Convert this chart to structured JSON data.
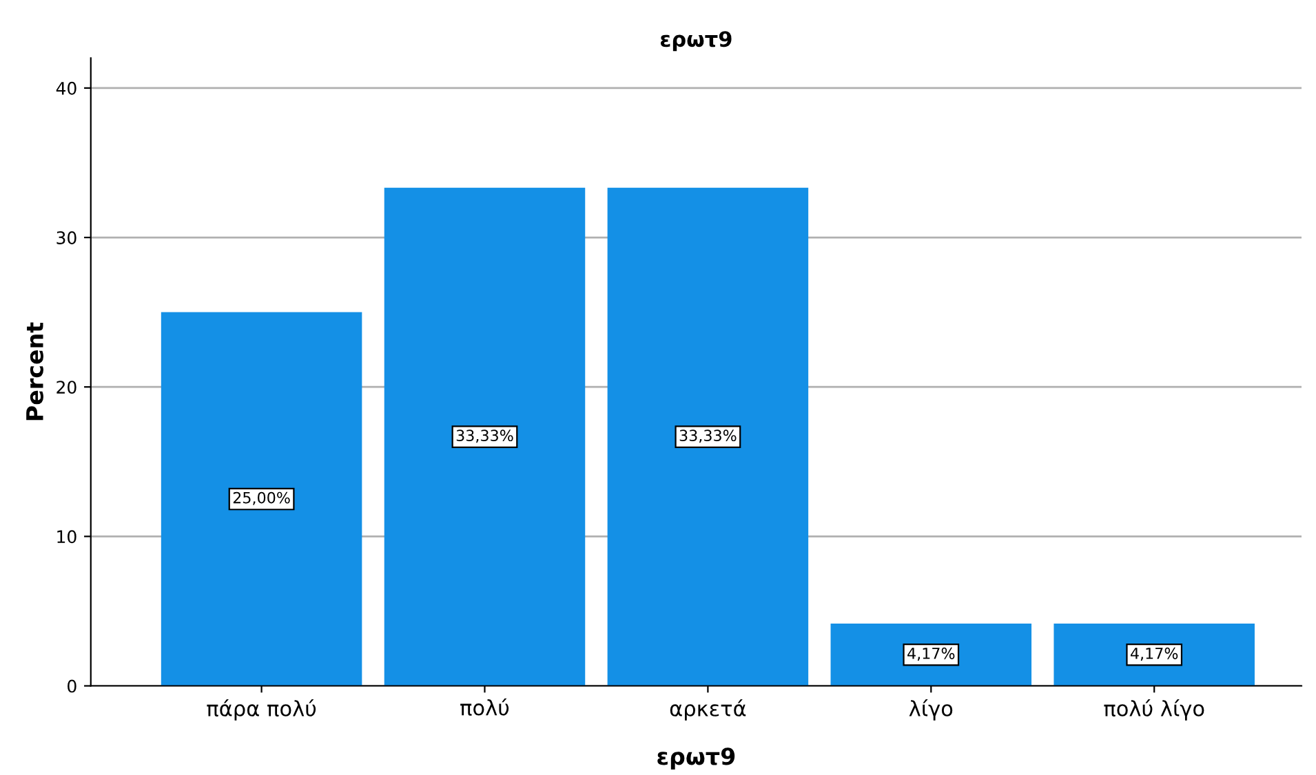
{
  "chart_data": {
    "type": "bar",
    "title": "ερωτ9",
    "xlabel": "ερωτ9",
    "ylabel": "Percent",
    "categories": [
      "πάρα πολύ",
      "πολύ",
      "αρκετά",
      "λίγο",
      "πολύ λίγο"
    ],
    "values": [
      25.0,
      33.33,
      33.33,
      4.17,
      4.17
    ],
    "value_labels": [
      "25,00%",
      "33,33%",
      "33,33%",
      "4,17%",
      "4,17%"
    ],
    "color": "#1490e6",
    "ylim": [
      0,
      42
    ],
    "yticks": [
      0,
      10,
      20,
      30,
      40
    ],
    "grid": "y"
  }
}
